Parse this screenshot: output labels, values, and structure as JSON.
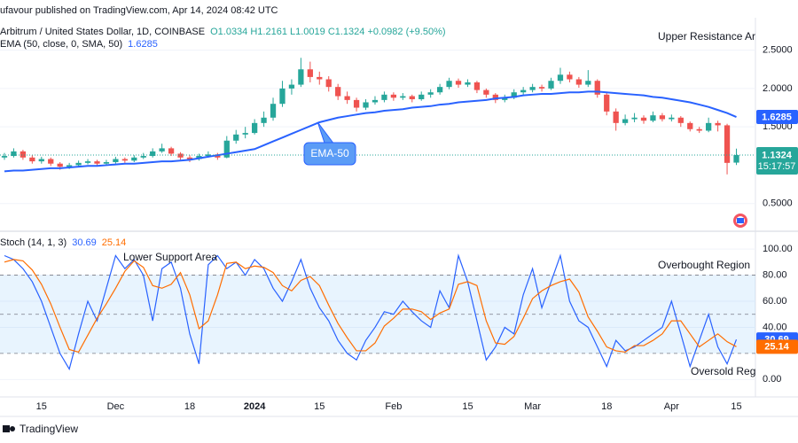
{
  "header": "ufavour published on TradingView.com, Apr 14, 2024 08:42 UTC",
  "footer": "TradingView",
  "chart_data": [
    {
      "type": "candlestick",
      "title": "Arbitrum / United States Dollar, 1D, COINBASE",
      "ohlc_text": "O1.0334 H1.2161 L1.0019 C1.1324 +0.0982 (+9.50%)",
      "last_timer": "15:17:57",
      "up_color": "#26a69a",
      "down_color": "#ef5350",
      "categories": [
        null,
        null,
        null,
        null,
        "15",
        null,
        null,
        null,
        null,
        null,
        null,
        null,
        "Dec",
        null,
        null,
        null,
        null,
        null,
        null,
        null,
        "18",
        null,
        null,
        null,
        null,
        null,
        null,
        "2024",
        null,
        null,
        null,
        null,
        null,
        null,
        "15",
        null,
        null,
        null,
        null,
        null,
        null,
        null,
        "Feb",
        null,
        null,
        null,
        null,
        null,
        null,
        null,
        "15",
        null,
        null,
        null,
        null,
        null,
        null,
        "Mar",
        null,
        null,
        null,
        null,
        null,
        null,
        null,
        "18",
        null,
        null,
        null,
        null,
        null,
        null,
        "Apr",
        null,
        null,
        null,
        null,
        null,
        null,
        "15"
      ],
      "candles": [
        [
          1.1,
          1.16,
          1.07,
          1.12
        ],
        [
          1.12,
          1.22,
          1.1,
          1.18
        ],
        [
          1.18,
          1.2,
          1.07,
          1.1
        ],
        [
          1.1,
          1.13,
          1.02,
          1.05
        ],
        [
          1.05,
          1.11,
          1.02,
          1.08
        ],
        [
          1.08,
          1.1,
          0.99,
          1.02
        ],
        [
          1.02,
          1.04,
          0.94,
          0.98
        ],
        [
          0.98,
          1.03,
          0.95,
          1.0
        ],
        [
          1.0,
          1.06,
          0.98,
          1.03
        ],
        [
          1.03,
          1.08,
          1.01,
          1.05
        ],
        [
          1.05,
          1.07,
          0.99,
          1.02
        ],
        [
          1.02,
          1.07,
          1.0,
          1.04
        ],
        [
          1.04,
          1.11,
          1.02,
          1.08
        ],
        [
          1.08,
          1.1,
          1.03,
          1.06
        ],
        [
          1.06,
          1.13,
          1.04,
          1.1
        ],
        [
          1.1,
          1.16,
          1.08,
          1.12
        ],
        [
          1.12,
          1.22,
          1.1,
          1.18
        ],
        [
          1.18,
          1.28,
          1.16,
          1.22
        ],
        [
          1.22,
          1.24,
          1.12,
          1.15
        ],
        [
          1.15,
          1.17,
          1.07,
          1.1
        ],
        [
          1.1,
          1.13,
          1.04,
          1.08
        ],
        [
          1.08,
          1.15,
          1.06,
          1.12
        ],
        [
          1.12,
          1.18,
          1.1,
          1.14
        ],
        [
          1.14,
          1.16,
          1.07,
          1.1
        ],
        [
          1.1,
          1.38,
          1.09,
          1.32
        ],
        [
          1.32,
          1.46,
          1.28,
          1.4
        ],
        [
          1.4,
          1.5,
          1.35,
          1.42
        ],
        [
          1.42,
          1.6,
          1.4,
          1.55
        ],
        [
          1.55,
          1.7,
          1.5,
          1.62
        ],
        [
          1.62,
          1.88,
          1.58,
          1.8
        ],
        [
          1.8,
          2.1,
          1.76,
          2.0
        ],
        [
          2.0,
          2.12,
          1.92,
          2.05
        ],
        [
          2.05,
          2.4,
          2.02,
          2.25
        ],
        [
          2.25,
          2.35,
          2.08,
          2.15
        ],
        [
          2.15,
          2.22,
          2.05,
          2.12
        ],
        [
          2.12,
          2.16,
          1.96,
          2.02
        ],
        [
          2.02,
          2.06,
          1.85,
          1.9
        ],
        [
          1.9,
          1.96,
          1.8,
          1.85
        ],
        [
          1.85,
          1.88,
          1.7,
          1.75
        ],
        [
          1.75,
          1.86,
          1.72,
          1.82
        ],
        [
          1.82,
          1.9,
          1.79,
          1.85
        ],
        [
          1.85,
          1.96,
          1.82,
          1.92
        ],
        [
          1.92,
          1.95,
          1.84,
          1.88
        ],
        [
          1.88,
          1.94,
          1.85,
          1.9
        ],
        [
          1.9,
          1.92,
          1.82,
          1.86
        ],
        [
          1.86,
          1.96,
          1.84,
          1.92
        ],
        [
          1.92,
          1.99,
          1.88,
          1.95
        ],
        [
          1.95,
          2.06,
          1.92,
          2.02
        ],
        [
          2.02,
          2.14,
          1.99,
          2.1
        ],
        [
          2.1,
          2.13,
          2.01,
          2.05
        ],
        [
          2.05,
          2.12,
          2.02,
          2.08
        ],
        [
          2.08,
          2.1,
          1.94,
          1.98
        ],
        [
          1.98,
          2.0,
          1.88,
          1.92
        ],
        [
          1.92,
          1.94,
          1.81,
          1.85
        ],
        [
          1.85,
          1.92,
          1.82,
          1.88
        ],
        [
          1.88,
          1.99,
          1.86,
          1.95
        ],
        [
          1.95,
          2.02,
          1.92,
          1.98
        ],
        [
          1.98,
          2.06,
          1.95,
          2.02
        ],
        [
          2.02,
          2.05,
          1.96,
          2.0
        ],
        [
          2.0,
          2.14,
          1.98,
          2.1
        ],
        [
          2.1,
          2.27,
          2.06,
          2.18
        ],
        [
          2.18,
          2.22,
          2.08,
          2.12
        ],
        [
          2.12,
          2.15,
          2.01,
          2.05
        ],
        [
          2.05,
          2.24,
          2.02,
          2.1
        ],
        [
          2.1,
          2.12,
          1.88,
          1.92
        ],
        [
          1.92,
          1.95,
          1.65,
          1.7
        ],
        [
          1.7,
          1.74,
          1.45,
          1.55
        ],
        [
          1.55,
          1.66,
          1.52,
          1.6
        ],
        [
          1.6,
          1.68,
          1.56,
          1.62
        ],
        [
          1.62,
          1.65,
          1.54,
          1.58
        ],
        [
          1.58,
          1.7,
          1.56,
          1.65
        ],
        [
          1.65,
          1.68,
          1.57,
          1.6
        ],
        [
          1.6,
          1.66,
          1.57,
          1.62
        ],
        [
          1.62,
          1.64,
          1.5,
          1.55
        ],
        [
          1.55,
          1.57,
          1.44,
          1.47
        ],
        [
          1.47,
          1.5,
          1.42,
          1.45
        ],
        [
          1.45,
          1.62,
          1.43,
          1.55
        ],
        [
          1.55,
          1.58,
          1.44,
          1.52
        ],
        [
          1.52,
          1.54,
          0.88,
          1.03
        ],
        [
          1.0334,
          1.2161,
          1.0019,
          1.1324
        ]
      ],
      "series": [
        {
          "name": "EMA (50, close, 0, SMA, 50)",
          "color": "#2962ff",
          "values": [
            0.92,
            0.93,
            0.93,
            0.94,
            0.95,
            0.96,
            0.96,
            0.97,
            0.98,
            0.99,
            0.99,
            1.0,
            1.01,
            1.02,
            1.02,
            1.03,
            1.04,
            1.05,
            1.05,
            1.06,
            1.07,
            1.09,
            1.11,
            1.13,
            1.15,
            1.17,
            1.19,
            1.21,
            1.26,
            1.31,
            1.36,
            1.41,
            1.46,
            1.51,
            1.56,
            1.59,
            1.62,
            1.64,
            1.66,
            1.68,
            1.69,
            1.71,
            1.72,
            1.73,
            1.75,
            1.76,
            1.77,
            1.79,
            1.8,
            1.82,
            1.83,
            1.84,
            1.85,
            1.87,
            1.88,
            1.89,
            1.91,
            1.92,
            1.93,
            1.93,
            1.94,
            1.95,
            1.95,
            1.96,
            1.96,
            1.95,
            1.94,
            1.93,
            1.92,
            1.91,
            1.89,
            1.88,
            1.86,
            1.84,
            1.82,
            1.79,
            1.76,
            1.72,
            1.68,
            1.6285
          ]
        }
      ],
      "ylim": [
        0.15,
        2.9
      ],
      "yticks": [
        {
          "value": 2.5,
          "label": "2.5000"
        },
        {
          "value": 2,
          "label": "2.0000"
        },
        {
          "value": 1.5,
          "label": "1.5000"
        },
        {
          "value": 0.5,
          "label": "0.5000"
        }
      ],
      "grid": true,
      "annotations": [
        "Upper Resistance Ar",
        "EMA-50"
      ]
    },
    {
      "type": "line",
      "title": "Stoch (14, 1, 3)",
      "series": [
        {
          "color": "#2962ff",
          "values": [
            95,
            92,
            85,
            75,
            60,
            40,
            20,
            8,
            35,
            60,
            45,
            70,
            95,
            85,
            92,
            80,
            45,
            85,
            90,
            70,
            35,
            12,
            88,
            95,
            85,
            90,
            80,
            92,
            85,
            70,
            60,
            75,
            92,
            70,
            55,
            45,
            30,
            20,
            15,
            30,
            40,
            52,
            50,
            60,
            52,
            45,
            40,
            68,
            55,
            95,
            75,
            45,
            15,
            25,
            40,
            35,
            65,
            85,
            55,
            75,
            95,
            60,
            45,
            40,
            25,
            10,
            30,
            22,
            25,
            30,
            35,
            40,
            60,
            35,
            10,
            30,
            50,
            25,
            12,
            30.69
          ]
        },
        {
          "color": "#ff6d00",
          "values": [
            90,
            92,
            91,
            84,
            73,
            58,
            40,
            23,
            21,
            34,
            47,
            58,
            70,
            83,
            91,
            86,
            72,
            70,
            73,
            82,
            65,
            39,
            45,
            65,
            89,
            90,
            85,
            87,
            86,
            82,
            72,
            68,
            76,
            79,
            72,
            57,
            43,
            32,
            22,
            22,
            28,
            41,
            47,
            54,
            54,
            52,
            46,
            51,
            54,
            73,
            75,
            72,
            45,
            28,
            27,
            33,
            47,
            62,
            68,
            72,
            75,
            77,
            67,
            48,
            37,
            25,
            22,
            21,
            26,
            26,
            30,
            35,
            45,
            45,
            35,
            25,
            30,
            35,
            29,
            25.14
          ]
        }
      ],
      "ylim": [
        -12,
        113
      ],
      "yticks": [
        {
          "value": 100,
          "label": "100.00"
        },
        {
          "value": 80,
          "label": "80.00"
        },
        {
          "value": 60,
          "label": "60.00"
        },
        {
          "value": 40,
          "label": "40.00"
        },
        {
          "value": 0,
          "label": "0.00"
        }
      ],
      "band": [
        20,
        80
      ],
      "hlines": [
        80,
        50,
        20
      ],
      "grid": true,
      "annotations": [
        "Lower Support Area",
        "Overbought Region",
        "Oversold Regi"
      ]
    }
  ]
}
